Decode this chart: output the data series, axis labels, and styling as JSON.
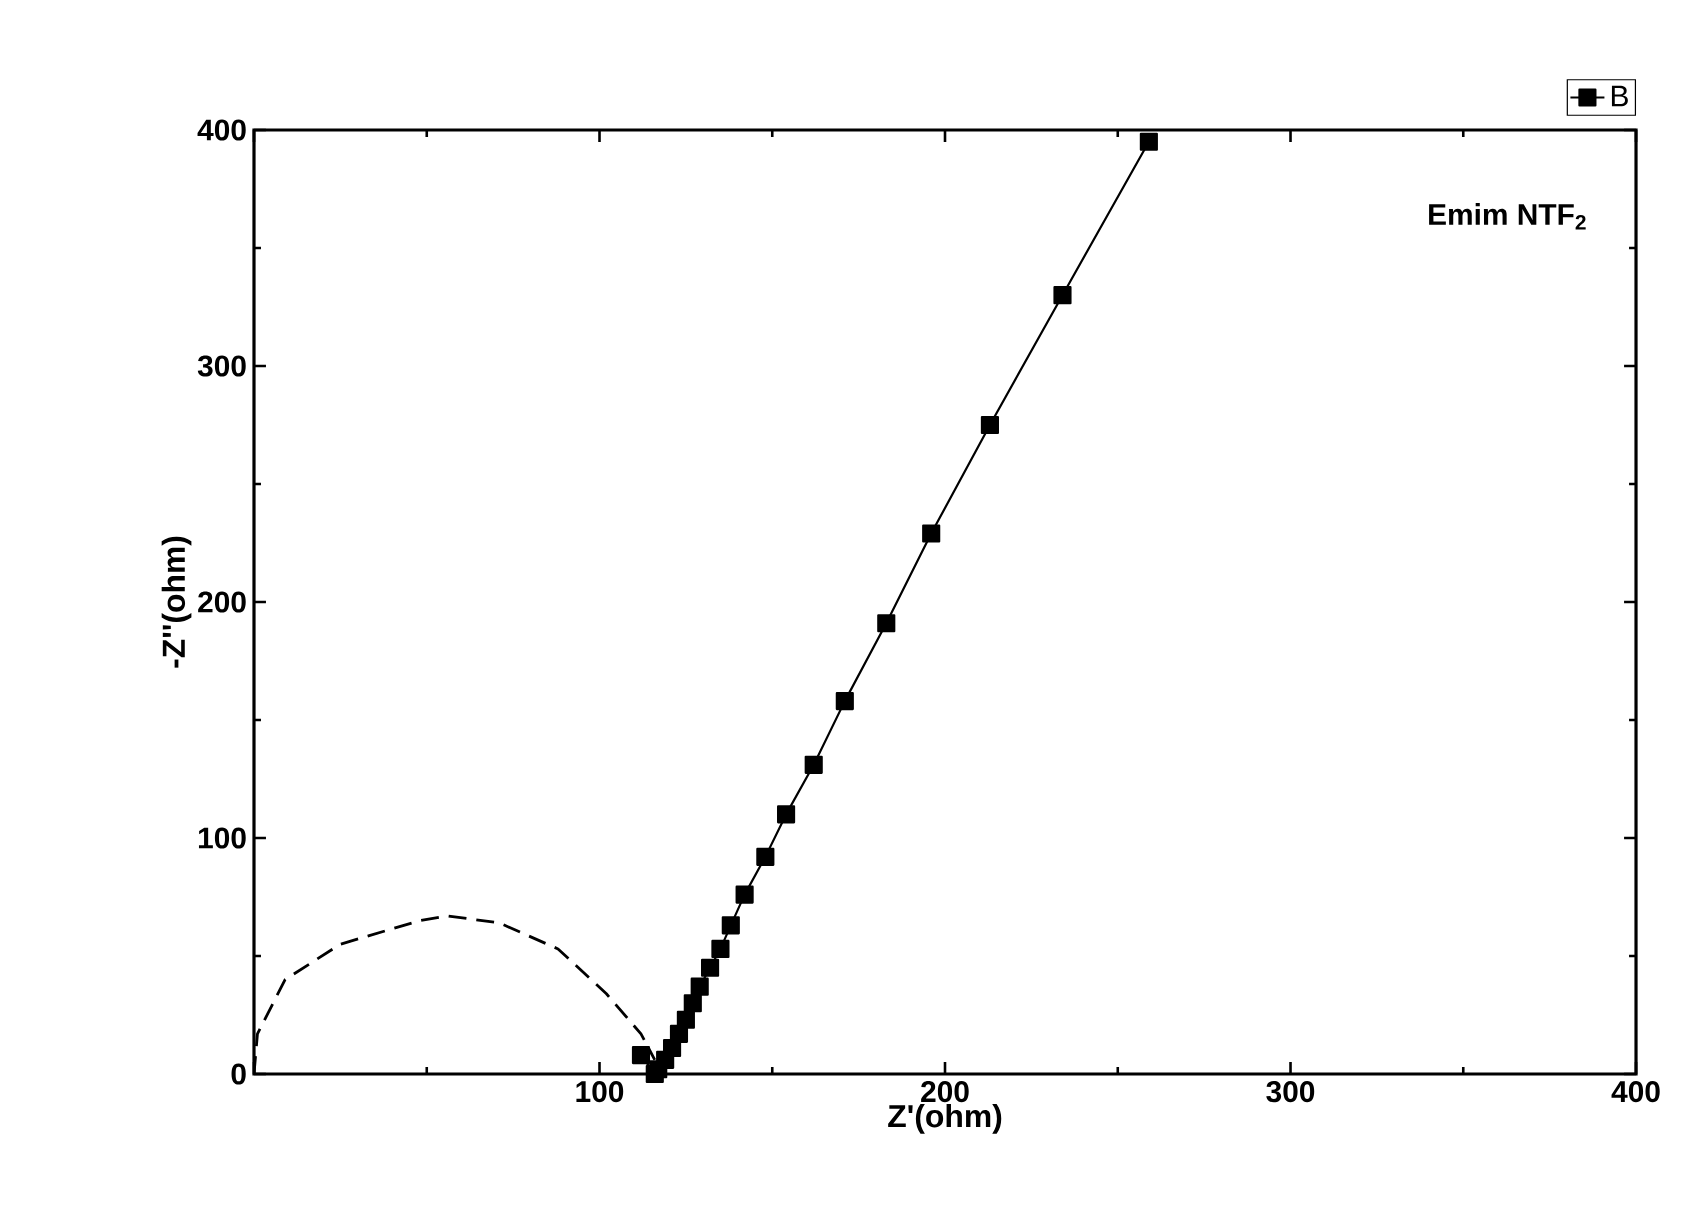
{
  "chart_data": {
    "type": "line",
    "xlabel": "Z'(ohm)",
    "ylabel": "-Z''(ohm)",
    "xlim": [
      0,
      400
    ],
    "ylim": [
      0,
      400
    ],
    "xticks": [
      {
        "value": 0,
        "label": null
      },
      100,
      200,
      300,
      400
    ],
    "yticks": [
      0,
      100,
      200,
      300,
      400
    ],
    "legend": "top right",
    "grid": false,
    "annotations": [
      "Emim NTF$_{2}$"
    ],
    "series": [
      {
        "name": "B",
        "color": "#000000",
        "marker": "square",
        "line_style": "solid",
        "x": [
          112,
          114,
          116,
          117,
          119,
          121,
          123,
          125,
          127,
          129,
          132,
          135,
          138,
          142,
          148,
          154,
          162,
          171,
          183,
          196,
          213,
          234,
          259
        ],
        "values": [
          8,
          null,
          0,
          2,
          6,
          11,
          17,
          23,
          30,
          37,
          45,
          53,
          63,
          76,
          92,
          110,
          131,
          158,
          191,
          229,
          275,
          330,
          395
        ]
      },
      {
        "color": "#000000",
        "marker": "none",
        "line_style": "dashed",
        "x": [
          0,
          1,
          9,
          25,
          48,
          56,
          71,
          88,
          102,
          112,
          116
        ],
        "values": [
          0,
          17,
          40,
          55,
          65,
          67,
          64,
          53,
          34,
          17,
          6
        ]
      }
    ]
  }
}
